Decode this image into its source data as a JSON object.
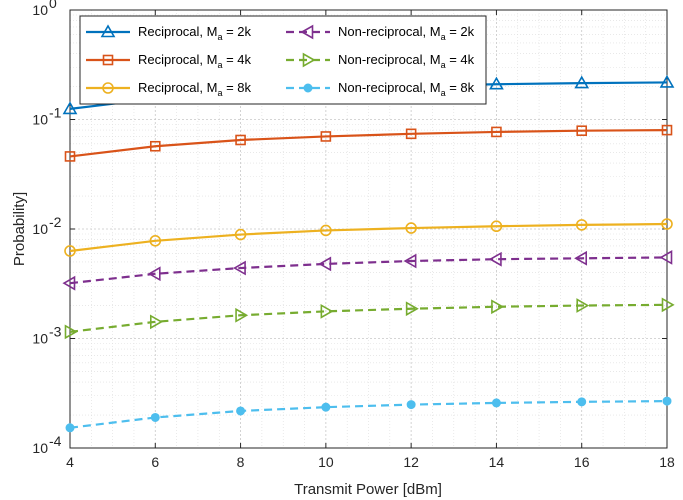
{
  "chart_data": {
    "type": "line",
    "xlabel": "Transmit Power [dBm]",
    "ylabel": "Probability]",
    "xlim": [
      4,
      18
    ],
    "ylim": [
      0.0001,
      1
    ],
    "yscale": "log",
    "grid": true,
    "minor_grid": true,
    "legend_position": "top-left",
    "x_ticks": [
      "4",
      "6",
      "8",
      "10",
      "12",
      "14",
      "16",
      "18"
    ],
    "y_ticks": [
      {
        "value": 0.0001,
        "base": "10",
        "exp": "-4"
      },
      {
        "value": 0.001,
        "base": "10",
        "exp": "-3"
      },
      {
        "value": 0.01,
        "base": "10",
        "exp": "-2"
      },
      {
        "value": 0.1,
        "base": "10",
        "exp": "-1"
      },
      {
        "value": 1,
        "base": "10",
        "exp": "0"
      }
    ],
    "x": [
      4,
      6,
      8,
      10,
      12,
      14,
      16,
      18
    ],
    "series": [
      {
        "name": "Reciprocal, M",
        "sub": "a",
        "suffix": " = 2k",
        "color": "#0072bd",
        "dash": "solid",
        "marker": "triangle-up",
        "values": [
          0.125,
          0.155,
          0.178,
          0.193,
          0.203,
          0.21,
          0.215,
          0.218
        ]
      },
      {
        "name": "Non-reciprocal, M",
        "sub": "a",
        "suffix": " = 2k",
        "color": "#7e2f8e",
        "dash": "dashed",
        "marker": "triangle-left",
        "values": [
          0.0032,
          0.0039,
          0.0044,
          0.0048,
          0.0051,
          0.0053,
          0.0054,
          0.0055
        ]
      },
      {
        "name": "Reciprocal, M",
        "sub": "a",
        "suffix": " = 4k",
        "color": "#d95319",
        "dash": "solid",
        "marker": "square",
        "values": [
          0.046,
          0.057,
          0.065,
          0.07,
          0.074,
          0.077,
          0.079,
          0.08
        ]
      },
      {
        "name": "Non-reciprocal, M",
        "sub": "a",
        "suffix": " = 4k",
        "color": "#77ac30",
        "dash": "dashed",
        "marker": "triangle-right",
        "values": [
          0.00115,
          0.00142,
          0.00163,
          0.00177,
          0.00187,
          0.00195,
          0.002,
          0.00203
        ]
      },
      {
        "name": "Reciprocal, M",
        "sub": "a",
        "suffix": " = 8k",
        "color": "#edb120",
        "dash": "solid",
        "marker": "circle",
        "values": [
          0.0063,
          0.0078,
          0.0089,
          0.0097,
          0.0102,
          0.0106,
          0.0109,
          0.0111
        ]
      },
      {
        "name": "Non-reciprocal, M",
        "sub": "a",
        "suffix": " = 8k",
        "color": "#4dbeee",
        "dash": "dashed",
        "marker": "filled-circle",
        "values": [
          0.000153,
          0.00019,
          0.000218,
          0.000236,
          0.000249,
          0.000258,
          0.000264,
          0.000268
        ]
      }
    ]
  }
}
